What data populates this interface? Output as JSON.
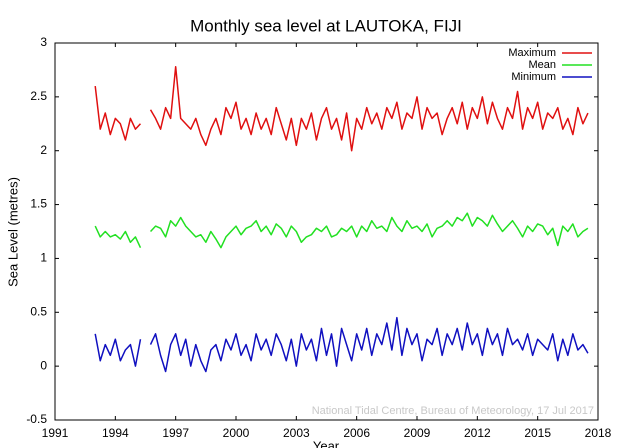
{
  "chart_data": {
    "type": "line",
    "title": "Monthly sea level at LAUTOKA, FIJI",
    "xlabel": "Year",
    "ylabel": "Sea Level (metres)",
    "annotation": "National Tidal Centre, Bureau of Meteorology, 17 Jul 2017",
    "legend": "upper right",
    "xlim": [
      1991,
      2018
    ],
    "xticks": [
      1991,
      1994,
      1997,
      2000,
      2003,
      2006,
      2009,
      2012,
      2015,
      2018
    ],
    "ylim": [
      -0.5,
      3
    ],
    "yticks": [
      -0.5,
      0,
      0.5,
      1,
      1.5,
      2,
      2.5,
      3
    ],
    "x": [
      1993,
      1993.25,
      1993.5,
      1993.75,
      1994,
      1994.25,
      1994.5,
      1994.75,
      1995,
      1995.25,
      1995.5,
      1995.75,
      1996,
      1996.25,
      1996.5,
      1996.75,
      1997,
      1997.25,
      1997.5,
      1997.75,
      1998,
      1998.25,
      1998.5,
      1998.75,
      1999,
      1999.25,
      1999.5,
      1999.75,
      2000,
      2000.25,
      2000.5,
      2000.75,
      2001,
      2001.25,
      2001.5,
      2001.75,
      2002,
      2002.25,
      2002.5,
      2002.75,
      2003,
      2003.25,
      2003.5,
      2003.75,
      2004,
      2004.25,
      2004.5,
      2004.75,
      2005,
      2005.25,
      2005.5,
      2005.75,
      2006,
      2006.25,
      2006.5,
      2006.75,
      2007,
      2007.25,
      2007.5,
      2007.75,
      2008,
      2008.25,
      2008.5,
      2008.75,
      2009,
      2009.25,
      2009.5,
      2009.75,
      2010,
      2010.25,
      2010.5,
      2010.75,
      2011,
      2011.25,
      2011.5,
      2011.75,
      2012,
      2012.25,
      2012.5,
      2012.75,
      2013,
      2013.25,
      2013.5,
      2013.75,
      2014,
      2014.25,
      2014.5,
      2014.75,
      2015,
      2015.25,
      2015.5,
      2015.75,
      2016,
      2016.25,
      2016.5,
      2016.75,
      2017,
      2017.25,
      2017.5
    ],
    "series": [
      {
        "name": "Maximum",
        "color": "#e01010",
        "values": [
          2.6,
          2.2,
          2.35,
          2.15,
          2.3,
          2.25,
          2.1,
          2.3,
          2.2,
          2.25,
          null,
          2.38,
          2.3,
          2.2,
          2.4,
          2.3,
          2.78,
          2.3,
          2.25,
          2.2,
          2.3,
          2.15,
          2.05,
          2.2,
          2.3,
          2.15,
          2.4,
          2.3,
          2.45,
          2.2,
          2.3,
          2.15,
          2.35,
          2.2,
          2.3,
          2.15,
          2.4,
          2.25,
          2.1,
          2.3,
          2.05,
          2.3,
          2.2,
          2.35,
          2.1,
          2.3,
          2.4,
          2.2,
          2.3,
          2.1,
          2.35,
          2.0,
          2.3,
          2.2,
          2.4,
          2.25,
          2.35,
          2.2,
          2.4,
          2.3,
          2.45,
          2.2,
          2.35,
          2.3,
          2.5,
          2.2,
          2.4,
          2.3,
          2.35,
          2.15,
          2.3,
          2.4,
          2.25,
          2.45,
          2.2,
          2.4,
          2.3,
          2.5,
          2.25,
          2.45,
          2.3,
          2.2,
          2.4,
          2.3,
          2.55,
          2.2,
          2.4,
          2.3,
          2.45,
          2.2,
          2.35,
          2.3,
          2.4,
          2.2,
          2.3,
          2.15,
          2.4,
          2.25,
          2.35
        ]
      },
      {
        "name": "Mean",
        "color": "#22e022",
        "values": [
          1.3,
          1.2,
          1.25,
          1.2,
          1.22,
          1.18,
          1.25,
          1.15,
          1.2,
          1.1,
          null,
          1.25,
          1.3,
          1.28,
          1.2,
          1.35,
          1.3,
          1.38,
          1.3,
          1.25,
          1.2,
          1.22,
          1.15,
          1.25,
          1.18,
          1.1,
          1.2,
          1.25,
          1.3,
          1.22,
          1.28,
          1.3,
          1.35,
          1.25,
          1.3,
          1.22,
          1.32,
          1.28,
          1.2,
          1.3,
          1.25,
          1.15,
          1.2,
          1.22,
          1.28,
          1.25,
          1.3,
          1.2,
          1.22,
          1.28,
          1.25,
          1.3,
          1.2,
          1.3,
          1.25,
          1.35,
          1.28,
          1.3,
          1.25,
          1.38,
          1.3,
          1.25,
          1.35,
          1.28,
          1.3,
          1.25,
          1.32,
          1.2,
          1.28,
          1.3,
          1.35,
          1.3,
          1.38,
          1.35,
          1.42,
          1.3,
          1.38,
          1.35,
          1.3,
          1.4,
          1.32,
          1.25,
          1.3,
          1.35,
          1.28,
          1.2,
          1.3,
          1.25,
          1.32,
          1.3,
          1.22,
          1.28,
          1.12,
          1.3,
          1.25,
          1.32,
          1.2,
          1.25,
          1.28
        ]
      },
      {
        "name": "Minimum",
        "color": "#1010c0",
        "values": [
          0.3,
          0.05,
          0.2,
          0.1,
          0.25,
          0.05,
          0.15,
          0.2,
          0.0,
          0.25,
          null,
          0.2,
          0.3,
          0.1,
          -0.05,
          0.2,
          0.3,
          0.1,
          0.25,
          0.0,
          0.2,
          0.05,
          -0.05,
          0.15,
          0.2,
          0.05,
          0.25,
          0.15,
          0.3,
          0.1,
          0.2,
          0.05,
          0.3,
          0.15,
          0.25,
          0.1,
          0.3,
          0.2,
          0.05,
          0.25,
          0.0,
          0.3,
          0.15,
          0.25,
          0.05,
          0.35,
          0.1,
          0.3,
          0.0,
          0.35,
          0.2,
          0.05,
          0.3,
          0.15,
          0.35,
          0.1,
          0.3,
          0.2,
          0.4,
          0.15,
          0.45,
          0.1,
          0.35,
          0.2,
          0.3,
          0.05,
          0.25,
          0.2,
          0.35,
          0.1,
          0.3,
          0.2,
          0.35,
          0.15,
          0.4,
          0.2,
          0.3,
          0.1,
          0.35,
          0.2,
          0.3,
          0.1,
          0.35,
          0.2,
          0.25,
          0.15,
          0.3,
          0.1,
          0.25,
          0.2,
          0.15,
          0.3,
          0.05,
          0.25,
          0.1,
          0.3,
          0.15,
          0.2,
          0.12
        ]
      }
    ]
  }
}
